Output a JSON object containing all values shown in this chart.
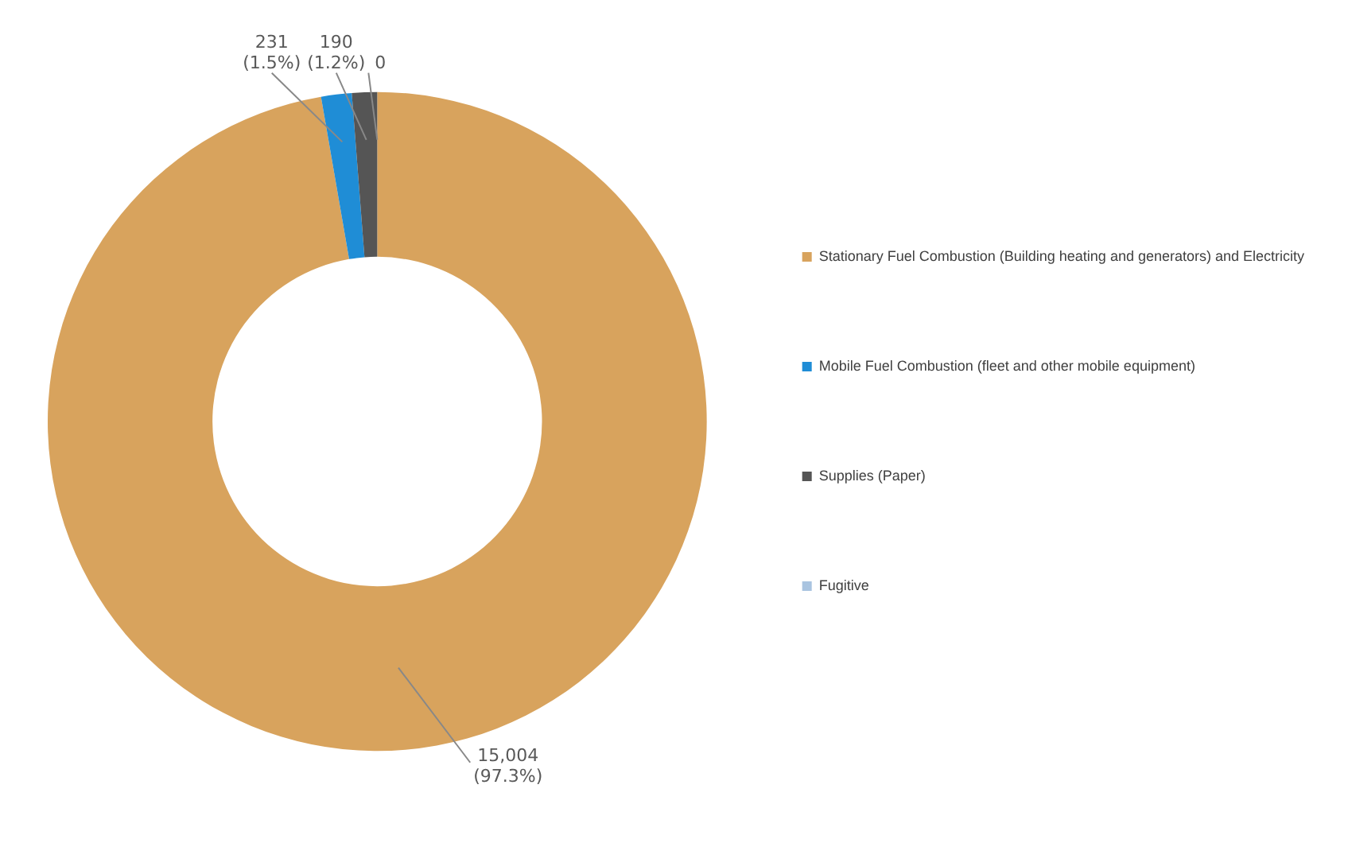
{
  "chart_data": {
    "type": "donut",
    "categories": [
      "Stationary Fuel Combustion (Building heating and generators) and Electricity",
      "Mobile Fuel Combustion (fleet and other mobile equipment)",
      "Supplies (Paper)",
      "Fugitive"
    ],
    "values": [
      15004,
      231,
      190,
      0
    ],
    "colors": [
      "#d8a35d",
      "#1f8dd6",
      "#555555",
      "#a9c4e0"
    ],
    "value_labels": [
      "15,004 (97.3%)",
      "231 (1.5%)",
      "190 (1.2%)",
      "0"
    ],
    "legend": "right"
  }
}
